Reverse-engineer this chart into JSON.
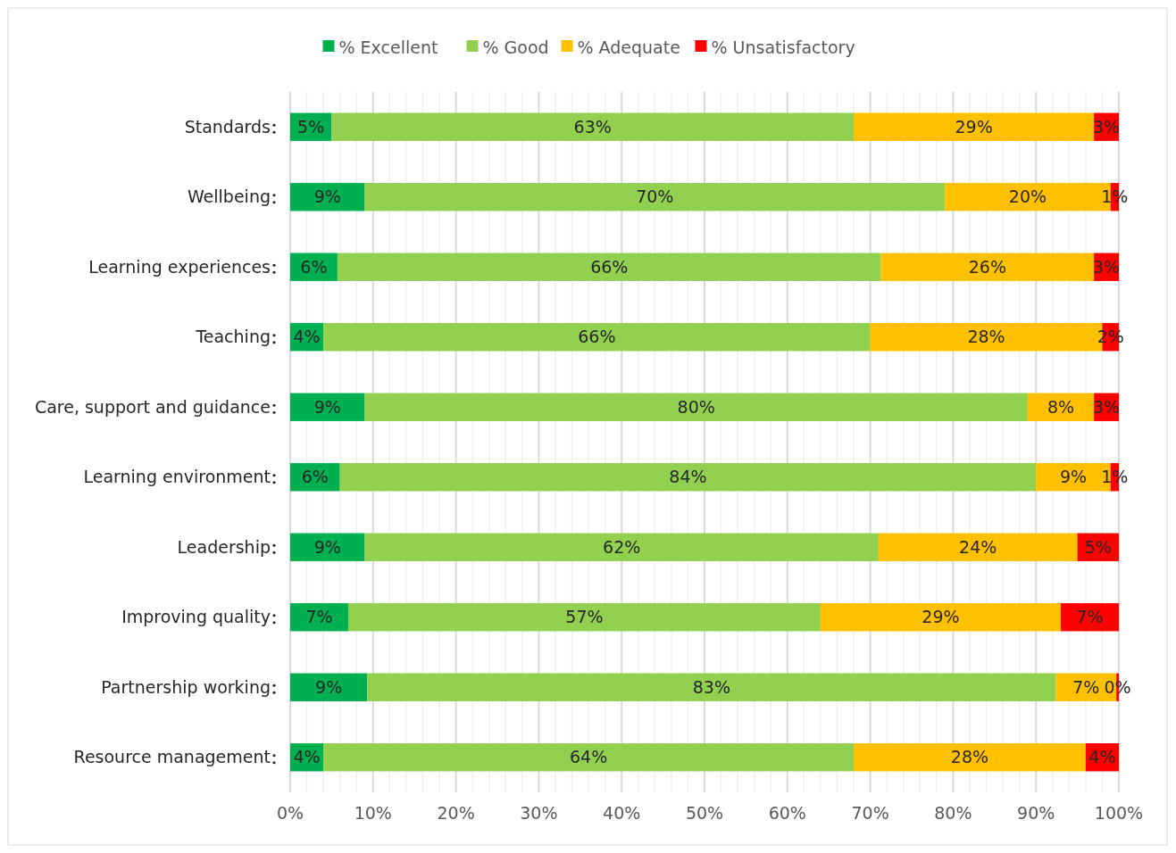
{
  "chart_data": {
    "type": "bar",
    "orientation": "horizontal",
    "stacked": true,
    "categories": [
      "Standards",
      "Wellbeing",
      "Learning experiences",
      "Teaching",
      "Care, support and guidance",
      "Learning environment",
      "Leadership",
      "Improving quality",
      "Partnership working",
      "Resource management"
    ],
    "series": [
      {
        "name": "% Excellent",
        "color": "#00b050",
        "values": [
          5,
          9,
          5.7,
          4,
          9,
          6,
          9,
          7,
          9.3,
          4
        ],
        "value_labels": [
          "5%",
          "9%",
          "6%",
          "4%",
          "9%",
          "6%",
          "9%",
          "7%",
          "9%",
          "4%"
        ]
      },
      {
        "name": "% Good",
        "color": "#92d050",
        "values": [
          63,
          70,
          65.6,
          66,
          80,
          84,
          62,
          57,
          83.1,
          64
        ],
        "value_labels": [
          "63%",
          "70%",
          "66%",
          "66%",
          "80%",
          "84%",
          "62%",
          "57%",
          "83%",
          "64%"
        ]
      },
      {
        "name": "% Adequate",
        "color": "#ffc000",
        "values": [
          29,
          20,
          25.7,
          28,
          8,
          9,
          24,
          29,
          7.3,
          28
        ],
        "value_labels": [
          "29%",
          "20%",
          "26%",
          "28%",
          "8%",
          "9%",
          "24%",
          "29%",
          "7%",
          "28%"
        ]
      },
      {
        "name": "% Unsatisfactory",
        "color": "#ff0000",
        "values": [
          3,
          1,
          3,
          2,
          3,
          1,
          5,
          7,
          0.3,
          4
        ],
        "value_labels": [
          "3%",
          "1%",
          "3%",
          "2%",
          "3%",
          "1%",
          "5%",
          "7%",
          "0%",
          "4%"
        ]
      }
    ],
    "xlim": [
      0,
      100
    ],
    "xticks": [
      {
        "value": 0,
        "label": "0%"
      },
      {
        "value": 2,
        "label": null
      },
      {
        "value": 4,
        "label": null
      },
      {
        "value": 6,
        "label": null
      },
      {
        "value": 8,
        "label": null
      },
      {
        "value": 10,
        "label": "10%"
      },
      {
        "value": 12,
        "label": null
      },
      {
        "value": 14,
        "label": null
      },
      {
        "value": 16,
        "label": null
      },
      {
        "value": 18,
        "label": null
      },
      {
        "value": 20,
        "label": "20%"
      },
      {
        "value": 22,
        "label": null
      },
      {
        "value": 24,
        "label": null
      },
      {
        "value": 26,
        "label": null
      },
      {
        "value": 28,
        "label": null
      },
      {
        "value": 30,
        "label": "30%"
      },
      {
        "value": 32,
        "label": null
      },
      {
        "value": 34,
        "label": null
      },
      {
        "value": 36,
        "label": null
      },
      {
        "value": 38,
        "label": null
      },
      {
        "value": 40,
        "label": "40%"
      },
      {
        "value": 42,
        "label": null
      },
      {
        "value": 44,
        "label": null
      },
      {
        "value": 46,
        "label": null
      },
      {
        "value": 48,
        "label": null
      },
      {
        "value": 50,
        "label": "50%"
      },
      {
        "value": 52,
        "label": null
      },
      {
        "value": 54,
        "label": null
      },
      {
        "value": 56,
        "label": null
      },
      {
        "value": 58,
        "label": null
      },
      {
        "value": 60,
        "label": "60%"
      },
      {
        "value": 62,
        "label": null
      },
      {
        "value": 64,
        "label": null
      },
      {
        "value": 66,
        "label": null
      },
      {
        "value": 68,
        "label": null
      },
      {
        "value": 70,
        "label": "70%"
      },
      {
        "value": 72,
        "label": null
      },
      {
        "value": 74,
        "label": null
      },
      {
        "value": 76,
        "label": null
      },
      {
        "value": 78,
        "label": null
      },
      {
        "value": 80,
        "label": "80%"
      },
      {
        "value": 82,
        "label": null
      },
      {
        "value": 84,
        "label": null
      },
      {
        "value": 86,
        "label": null
      },
      {
        "value": 88,
        "label": null
      },
      {
        "value": 90,
        "label": "90%"
      },
      {
        "value": 92,
        "label": null
      },
      {
        "value": 94,
        "label": null
      },
      {
        "value": 96,
        "label": null
      },
      {
        "value": 98,
        "label": null
      },
      {
        "value": 100,
        "label": "100%"
      }
    ],
    "grid": "x",
    "legend": "top"
  }
}
